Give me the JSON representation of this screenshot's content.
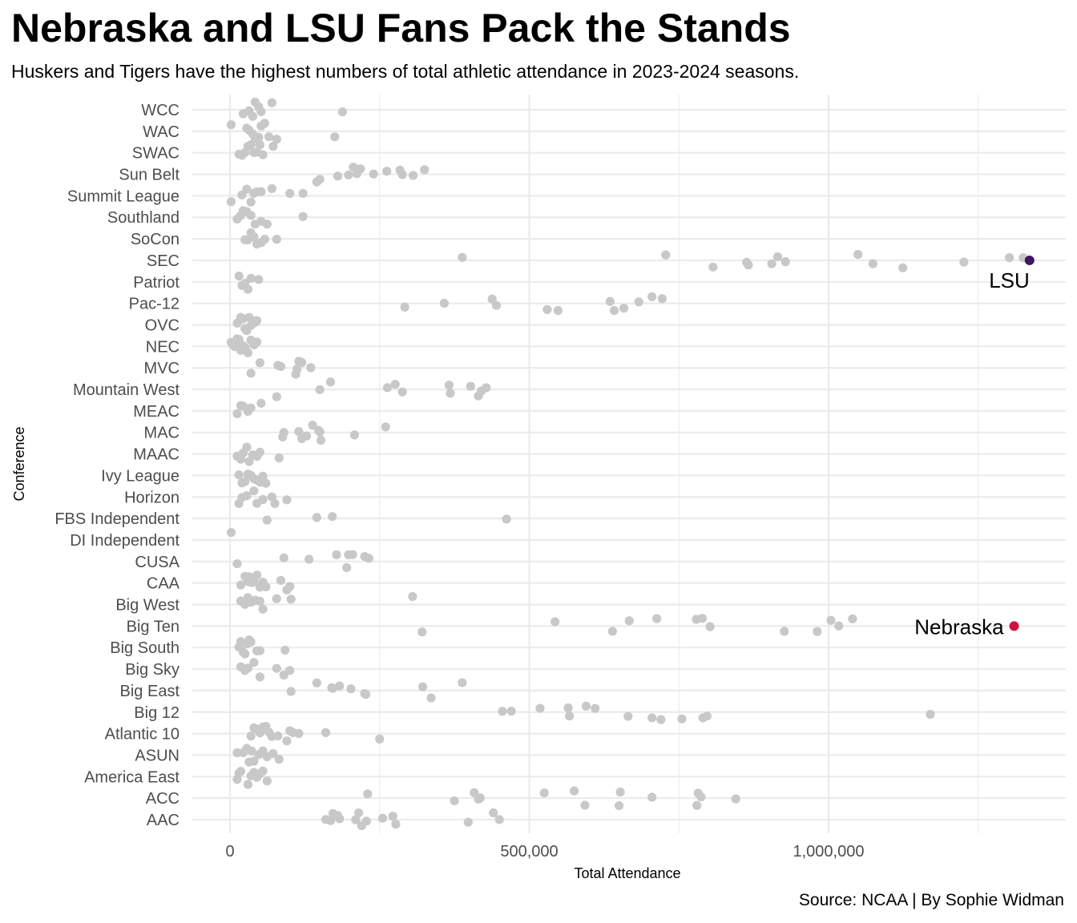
{
  "chart_data": {
    "type": "scatter",
    "title": "Nebraska and LSU Fans Pack the Stands",
    "subtitle": "Huskers and Tigers have the highest numbers of total athletic attendance in 2023-2024 seasons.",
    "caption": "Source: NCAA | By Sophie Widman",
    "xlabel": "Total Attendance",
    "ylabel": "Conference",
    "xlim": [
      -60000,
      1395000
    ],
    "x_ticks": [
      0,
      500000,
      1000000
    ],
    "x_tick_labels": [
      "0",
      "500,000",
      "1,000,000"
    ],
    "grid": true,
    "colors": {
      "default_point": "#c8c8c8",
      "lsu": "#3f1461",
      "nebraska": "#d2103c",
      "grid": "#ebebeb"
    },
    "categories": [
      "AAC",
      "ACC",
      "America East",
      "ASUN",
      "Atlantic 10",
      "Big 12",
      "Big East",
      "Big Sky",
      "Big South",
      "Big Ten",
      "Big West",
      "CAA",
      "CUSA",
      "DI Independent",
      "FBS Independent",
      "Horizon",
      "Ivy League",
      "MAAC",
      "MAC",
      "MEAC",
      "Mountain West",
      "MVC",
      "NEC",
      "OVC",
      "Pac-12",
      "Patriot",
      "SEC",
      "SoCon",
      "Southland",
      "Summit League",
      "Sun Belt",
      "SWAC",
      "WAC",
      "WCC"
    ],
    "series": [
      {
        "conference": "AAC",
        "values": [
          160000,
          168000,
          172000,
          180000,
          183000,
          210000,
          215000,
          220000,
          228000,
          255000,
          272000,
          277000,
          398000,
          440000,
          450000
        ]
      },
      {
        "conference": "ACC",
        "values": [
          230000,
          375000,
          408000,
          415000,
          418000,
          525000,
          575000,
          593000,
          650000,
          652000,
          705000,
          780000,
          782000,
          787000,
          845000
        ]
      },
      {
        "conference": "America East",
        "values": [
          12000,
          15000,
          18000,
          30000,
          35000,
          40000,
          45000,
          50000,
          55000,
          62000
        ]
      },
      {
        "conference": "ASUN",
        "values": [
          12000,
          22000,
          28000,
          32000,
          36000,
          40000,
          48000,
          55000,
          62000,
          72000,
          82000
        ]
      },
      {
        "conference": "Atlantic 10",
        "values": [
          35000,
          40000,
          45000,
          50000,
          55000,
          60000,
          65000,
          70000,
          80000,
          95000,
          100000,
          105000,
          115000,
          160000,
          250000
        ]
      },
      {
        "conference": "Big 12",
        "values": [
          455000,
          470000,
          518000,
          565000,
          567000,
          595000,
          610000,
          665000,
          705000,
          720000,
          755000,
          790000,
          797000,
          1170000
        ]
      },
      {
        "conference": "Big East",
        "values": [
          102000,
          145000,
          170000,
          172000,
          183000,
          202000,
          225000,
          227000,
          322000,
          336000,
          388000
        ]
      },
      {
        "conference": "Big Sky",
        "values": [
          18000,
          25000,
          30000,
          40000,
          50000,
          78000,
          90000,
          100000
        ]
      },
      {
        "conference": "Big South",
        "values": [
          15000,
          18000,
          22000,
          25000,
          28000,
          32000,
          35000,
          45000,
          50000,
          92000
        ]
      },
      {
        "conference": "Big Ten",
        "values": [
          321000,
          543000,
          639000,
          667000,
          713000,
          779000,
          789000,
          802000,
          926000,
          981000,
          1004000,
          1017000,
          1040000
        ]
      },
      {
        "conference": "Big West",
        "values": [
          18000,
          25000,
          30000,
          35000,
          42000,
          50000,
          55000,
          78000,
          102000,
          305000
        ]
      },
      {
        "conference": "CAA",
        "values": [
          18000,
          25000,
          30000,
          32000,
          36000,
          40000,
          45000,
          50000,
          55000,
          60000,
          85000,
          95000,
          100000
        ]
      },
      {
        "conference": "CUSA",
        "values": [
          12000,
          90000,
          132000,
          178000,
          195000,
          198000,
          205000,
          225000,
          232000
        ]
      },
      {
        "conference": "DI Independent",
        "values": [
          2000
        ]
      },
      {
        "conference": "FBS Independent",
        "values": [
          62000,
          145000,
          171000,
          462000
        ]
      },
      {
        "conference": "Horizon",
        "values": [
          15000,
          20000,
          28000,
          40000,
          45000,
          55000,
          70000,
          75000,
          95000
        ]
      },
      {
        "conference": "Ivy League",
        "values": [
          15000,
          20000,
          25000,
          30000,
          35000,
          40000,
          45000,
          50000,
          55000,
          60000
        ]
      },
      {
        "conference": "MAAC",
        "values": [
          12000,
          18000,
          22000,
          28000,
          32000,
          38000,
          45000,
          50000,
          82000
        ]
      },
      {
        "conference": "MAC",
        "values": [
          88000,
          90000,
          115000,
          120000,
          128000,
          138000,
          148000,
          150000,
          152000,
          208000,
          260000
        ]
      },
      {
        "conference": "MEAC",
        "values": [
          12000,
          18000,
          22000,
          30000,
          35000,
          52000
        ]
      },
      {
        "conference": "Mountain West",
        "values": [
          78000,
          150000,
          168000,
          263000,
          276000,
          288000,
          366000,
          368000,
          402000,
          415000,
          420000,
          428000
        ]
      },
      {
        "conference": "MVC",
        "values": [
          35000,
          50000,
          80000,
          85000,
          110000,
          112000,
          115000,
          120000,
          135000
        ]
      },
      {
        "conference": "NEC",
        "values": [
          2000,
          5000,
          8000,
          10000,
          12000,
          15000,
          18000,
          22000,
          25000,
          30000,
          35000,
          40000,
          45000
        ]
      },
      {
        "conference": "OVC",
        "values": [
          12000,
          18000,
          22000,
          25000,
          28000,
          32000,
          35000,
          38000,
          42000,
          45000
        ]
      },
      {
        "conference": "Pac-12",
        "values": [
          292000,
          358000,
          438000,
          445000,
          530000,
          548000,
          635000,
          642000,
          658000,
          683000,
          705000,
          722000
        ]
      },
      {
        "conference": "Patriot",
        "values": [
          15000,
          20000,
          25000,
          30000,
          35000,
          48000
        ]
      },
      {
        "conference": "SEC",
        "values": [
          388000,
          728000,
          807000,
          863000,
          866000,
          905000,
          915000,
          928000,
          1049000,
          1074000,
          1124000,
          1226000,
          1302000,
          1325000
        ]
      },
      {
        "conference": "SoCon",
        "values": [
          25000,
          30000,
          35000,
          40000,
          45000,
          52000,
          58000,
          78000
        ]
      },
      {
        "conference": "Southland",
        "values": [
          12000,
          18000,
          22000,
          28000,
          35000,
          42000,
          52000,
          62000,
          122000
        ]
      },
      {
        "conference": "Summit League",
        "values": [
          2000,
          20000,
          28000,
          35000,
          40000,
          45000,
          52000,
          70000,
          100000,
          122000
        ]
      },
      {
        "conference": "Sun Belt",
        "values": [
          145000,
          150000,
          180000,
          198000,
          206000,
          212000,
          218000,
          240000,
          262000,
          284000,
          288000,
          306000,
          325000
        ]
      },
      {
        "conference": "SWAC",
        "values": [
          15000,
          20000,
          25000,
          30000,
          35000,
          40000,
          45000,
          50000,
          55000,
          72000
        ]
      },
      {
        "conference": "WAC",
        "values": [
          2000,
          28000,
          32000,
          38000,
          42000,
          48000,
          52000,
          58000,
          65000,
          78000,
          175000
        ]
      },
      {
        "conference": "WCC",
        "values": [
          22000,
          32000,
          38000,
          42000,
          48000,
          52000,
          70000,
          188000
        ]
      }
    ],
    "highlights": [
      {
        "label": "LSU",
        "conference": "SEC",
        "value": 1325000,
        "color_key": "lsu"
      },
      {
        "label": "Nebraska",
        "conference": "Big Ten",
        "value": 1314000,
        "color_key": "nebraska"
      }
    ]
  }
}
